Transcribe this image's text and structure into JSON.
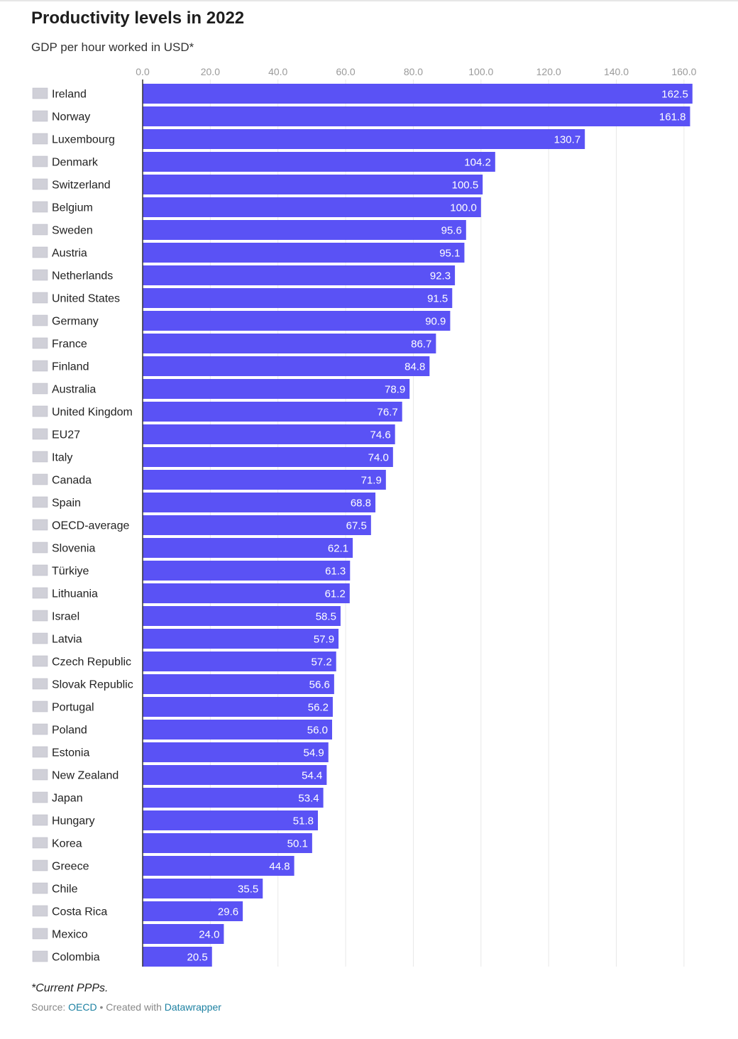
{
  "title": "Productivity levels in 2022",
  "subtitle": "GDP per hour worked in USD*",
  "note": "*Current PPPs.",
  "source": {
    "label": "Source:",
    "source_link": "OECD",
    "separator": "•",
    "created_with": "Created with",
    "tool_link": "Datawrapper"
  },
  "colors": {
    "bar": "#5a52f5",
    "bar_label": "#ffffff",
    "grid": "#e8e8e8",
    "tick": "#9a9a9a",
    "axis": "#333333",
    "link": "#1d81a2"
  },
  "chart_data": {
    "type": "bar",
    "orientation": "horizontal",
    "title": "Productivity levels in 2022",
    "subtitle": "GDP per hour worked in USD*",
    "xlabel": "",
    "ylabel": "",
    "xlim": [
      0,
      165
    ],
    "grid": true,
    "ticks": [
      "0.0",
      "20.0",
      "40.0",
      "60.0",
      "80.0",
      "100.0",
      "120.0",
      "140.0",
      "160.0"
    ],
    "tick_values": [
      0,
      20,
      40,
      60,
      80,
      100,
      120,
      140,
      160
    ],
    "categories": [
      "Ireland",
      "Norway",
      "Luxembourg",
      "Denmark",
      "Switzerland",
      "Belgium",
      "Sweden",
      "Austria",
      "Netherlands",
      "United States",
      "Germany",
      "France",
      "Finland",
      "Australia",
      "United Kingdom",
      "EU27",
      "Italy",
      "Canada",
      "Spain",
      "OECD-average",
      "Slovenia",
      "Türkiye",
      "Lithuania",
      "Israel",
      "Latvia",
      "Czech Republic",
      "Slovak Republic",
      "Portugal",
      "Poland",
      "Estonia",
      "New Zealand",
      "Japan",
      "Hungary",
      "Korea",
      "Greece",
      "Chile",
      "Costa Rica",
      "Mexico",
      "Colombia"
    ],
    "values": [
      162.5,
      161.8,
      130.7,
      104.2,
      100.5,
      100.0,
      95.6,
      95.1,
      92.3,
      91.5,
      90.9,
      86.7,
      84.8,
      78.9,
      76.7,
      74.6,
      74.0,
      71.9,
      68.8,
      67.5,
      62.1,
      61.3,
      61.2,
      58.5,
      57.9,
      57.2,
      56.6,
      56.2,
      56.0,
      54.9,
      54.4,
      53.4,
      51.8,
      50.1,
      44.8,
      35.5,
      29.6,
      24.0,
      20.5
    ],
    "value_labels": [
      "162.5",
      "161.8",
      "130.7",
      "104.2",
      "100.5",
      "100.0",
      "95.6",
      "95.1",
      "92.3",
      "91.5",
      "90.9",
      "86.7",
      "84.8",
      "78.9",
      "76.7",
      "74.6",
      "74.0",
      "71.9",
      "68.8",
      "67.5",
      "62.1",
      "61.3",
      "61.2",
      "58.5",
      "57.9",
      "57.2",
      "56.6",
      "56.2",
      "56.0",
      "54.9",
      "54.4",
      "53.4",
      "51.8",
      "50.1",
      "44.8",
      "35.5",
      "29.6",
      "24.0",
      "20.5"
    ]
  }
}
